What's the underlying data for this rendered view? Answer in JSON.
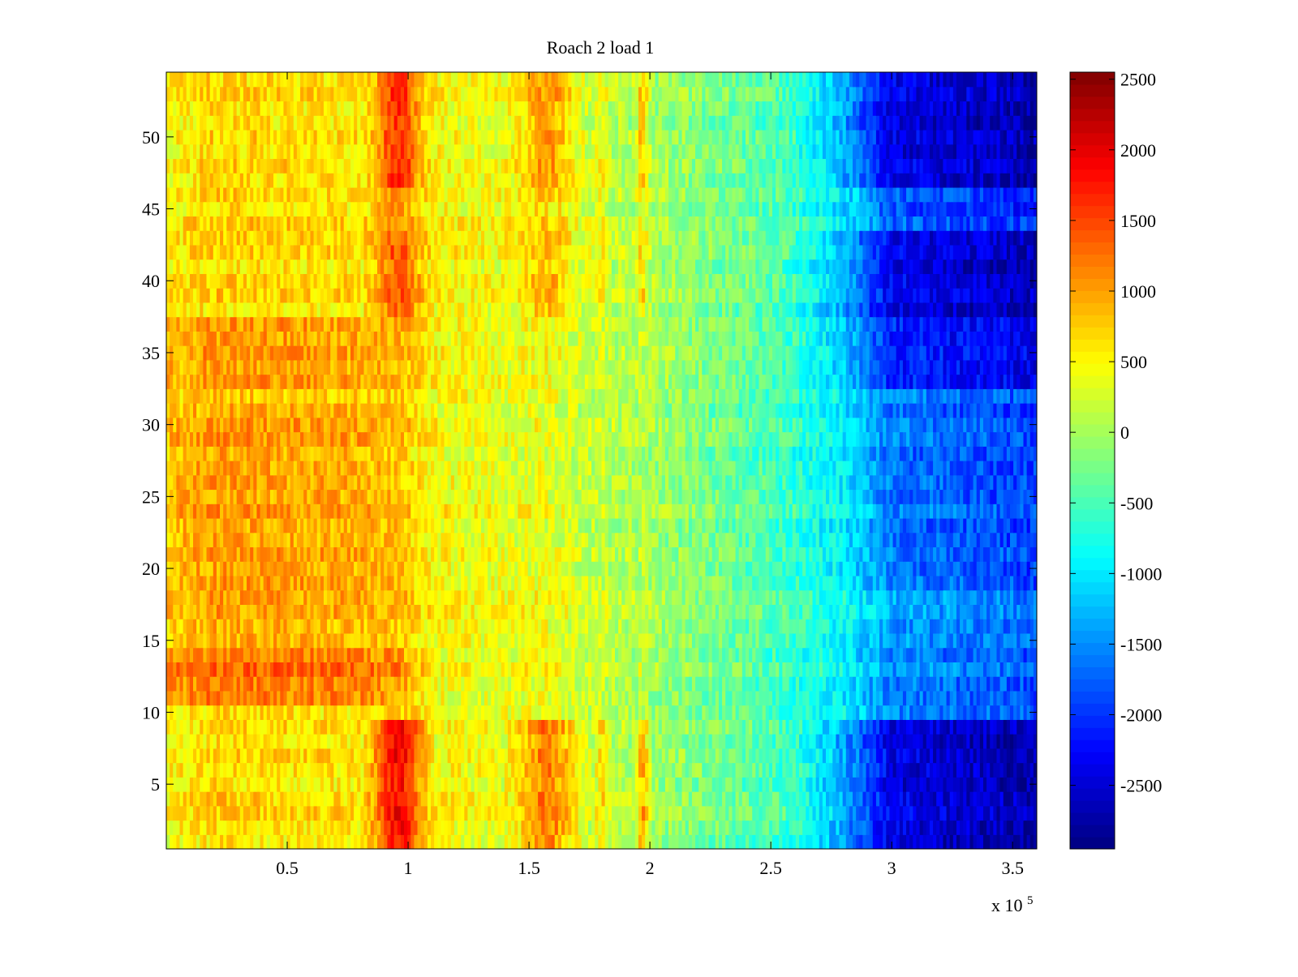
{
  "chart_data": {
    "type": "heatmap",
    "title": "Roach 2 load 1",
    "xlabel": "",
    "ylabel": "",
    "x_multiplier_label": "x 10",
    "x_multiplier_exponent": "5",
    "xlim": [
      0,
      360000
    ],
    "ylim": [
      0.5,
      54.5
    ],
    "x_ticks": [
      {
        "value": 50000,
        "label": "0.5"
      },
      {
        "value": 100000,
        "label": "1"
      },
      {
        "value": 150000,
        "label": "1.5"
      },
      {
        "value": 200000,
        "label": "2"
      },
      {
        "value": 250000,
        "label": "2.5"
      },
      {
        "value": 300000,
        "label": "3"
      },
      {
        "value": 350000,
        "label": "3.5"
      }
    ],
    "y_ticks": [
      {
        "value": 5,
        "label": "5"
      },
      {
        "value": 10,
        "label": "10"
      },
      {
        "value": 15,
        "label": "15"
      },
      {
        "value": 20,
        "label": "20"
      },
      {
        "value": 25,
        "label": "25"
      },
      {
        "value": 30,
        "label": "30"
      },
      {
        "value": 35,
        "label": "35"
      },
      {
        "value": 40,
        "label": "40"
      },
      {
        "value": 45,
        "label": "45"
      },
      {
        "value": 50,
        "label": "50"
      }
    ],
    "rows": 54,
    "colormap": "jet",
    "clim": [
      -2950,
      2550
    ],
    "colorbar": {
      "location": "right",
      "ticks": [
        {
          "value": 2500,
          "label": "2500"
        },
        {
          "value": 2000,
          "label": "2000"
        },
        {
          "value": 1500,
          "label": "1500"
        },
        {
          "value": 1000,
          "label": "1000"
        },
        {
          "value": 500,
          "label": "500"
        },
        {
          "value": 0,
          "label": "0"
        },
        {
          "value": -500,
          "label": "-500"
        },
        {
          "value": -1000,
          "label": "-1000"
        },
        {
          "value": -1500,
          "label": "-1500"
        },
        {
          "value": -2000,
          "label": "-2000"
        },
        {
          "value": -2500,
          "label": "-2500"
        }
      ]
    },
    "column_profile": [
      {
        "x": 0,
        "value": 500
      },
      {
        "x": 20000,
        "value": 700
      },
      {
        "x": 50000,
        "value": 650
      },
      {
        "x": 80000,
        "value": 600
      },
      {
        "x": 100000,
        "value": 550
      },
      {
        "x": 150000,
        "value": 350
      },
      {
        "x": 200000,
        "value": 0
      },
      {
        "x": 250000,
        "value": -450
      },
      {
        "x": 280000,
        "value": -900
      },
      {
        "x": 300000,
        "value": -1500
      },
      {
        "x": 360000,
        "value": -1800
      }
    ],
    "peaks": [
      {
        "x_center": 96000,
        "x_halfwidth": 9000,
        "amplitude": 1300
      },
      {
        "x_center": 158000,
        "x_halfwidth": 11000,
        "amplitude": 900
      },
      {
        "x_center": 180000,
        "x_halfwidth": 2500,
        "amplitude": 500
      },
      {
        "x_center": 197000,
        "x_halfwidth": 2500,
        "amplitude": 900
      }
    ],
    "row_groups": [
      {
        "rows": [
          1,
          9
        ],
        "peak_factor": 1.0,
        "right_offset": -900
      },
      {
        "rows": [
          10,
          10
        ],
        "peak_factor": 0.15,
        "right_offset": 0
      },
      {
        "rows": [
          11,
          14
        ],
        "peak_factor": 0.2,
        "left_offset": 600,
        "right_offset": 0
      },
      {
        "rows": [
          15,
          18
        ],
        "peak_factor": 0.1,
        "left_offset": 250,
        "right_offset": 100
      },
      {
        "rows": [
          19,
          31
        ],
        "peak_factor": 0.1,
        "left_offset": 350,
        "right_offset": -100
      },
      {
        "rows": [
          32,
          32
        ],
        "peak_factor": 0.1,
        "left_offset": 150,
        "right_offset": 0
      },
      {
        "rows": [
          33,
          37
        ],
        "peak_factor": 0.15,
        "left_offset": 350,
        "right_offset": -600
      },
      {
        "rows": [
          38,
          43
        ],
        "peak_factor": 0.6,
        "right_offset": -900
      },
      {
        "rows": [
          44,
          46
        ],
        "peak_factor": 0.4,
        "right_offset": -300
      },
      {
        "rows": [
          47,
          54
        ],
        "peak_factor": 0.8,
        "right_offset": -900
      }
    ]
  }
}
